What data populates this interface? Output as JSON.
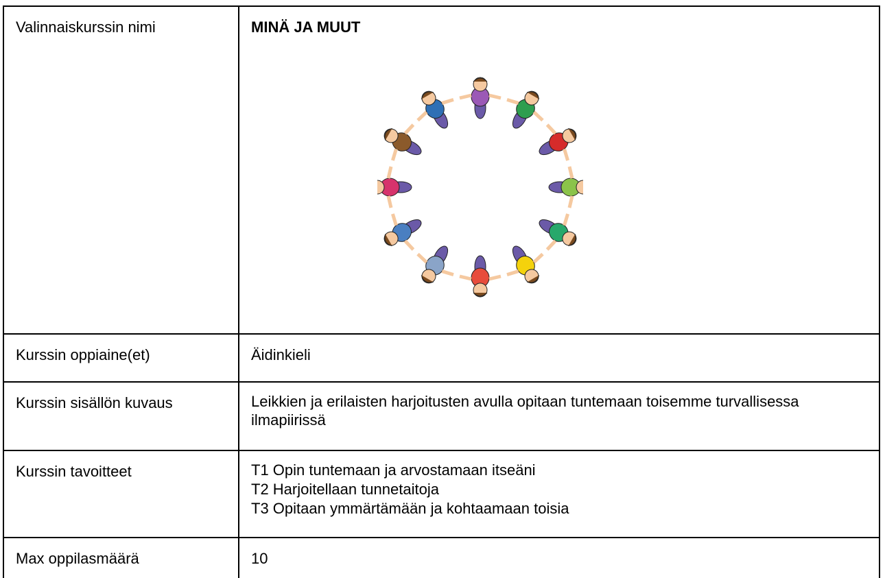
{
  "table": {
    "rows": [
      [
        "Valinnaiskurssin nimi",
        "MINÄ JA MUUT"
      ],
      [
        "Kurssin oppiaine(et)",
        "Äidinkieli"
      ],
      [
        "Kurssin sisällön kuvaus",
        "Leikkien ja erilaisten harjoitusten avulla opitaan tuntemaan toisemme turvallisessa ilmapiirissä"
      ],
      [
        "Kurssin tavoitteet",
        [
          "T1 Opin tuntemaan ja arvostamaan itseäni",
          "T2  Harjoitellaan tunnetaitoja",
          "T3  Opitaan ymmärtämään ja kohtaamaan toisia"
        ]
      ],
      [
        "Max oppilasmäärä",
        "10"
      ]
    ]
  }
}
